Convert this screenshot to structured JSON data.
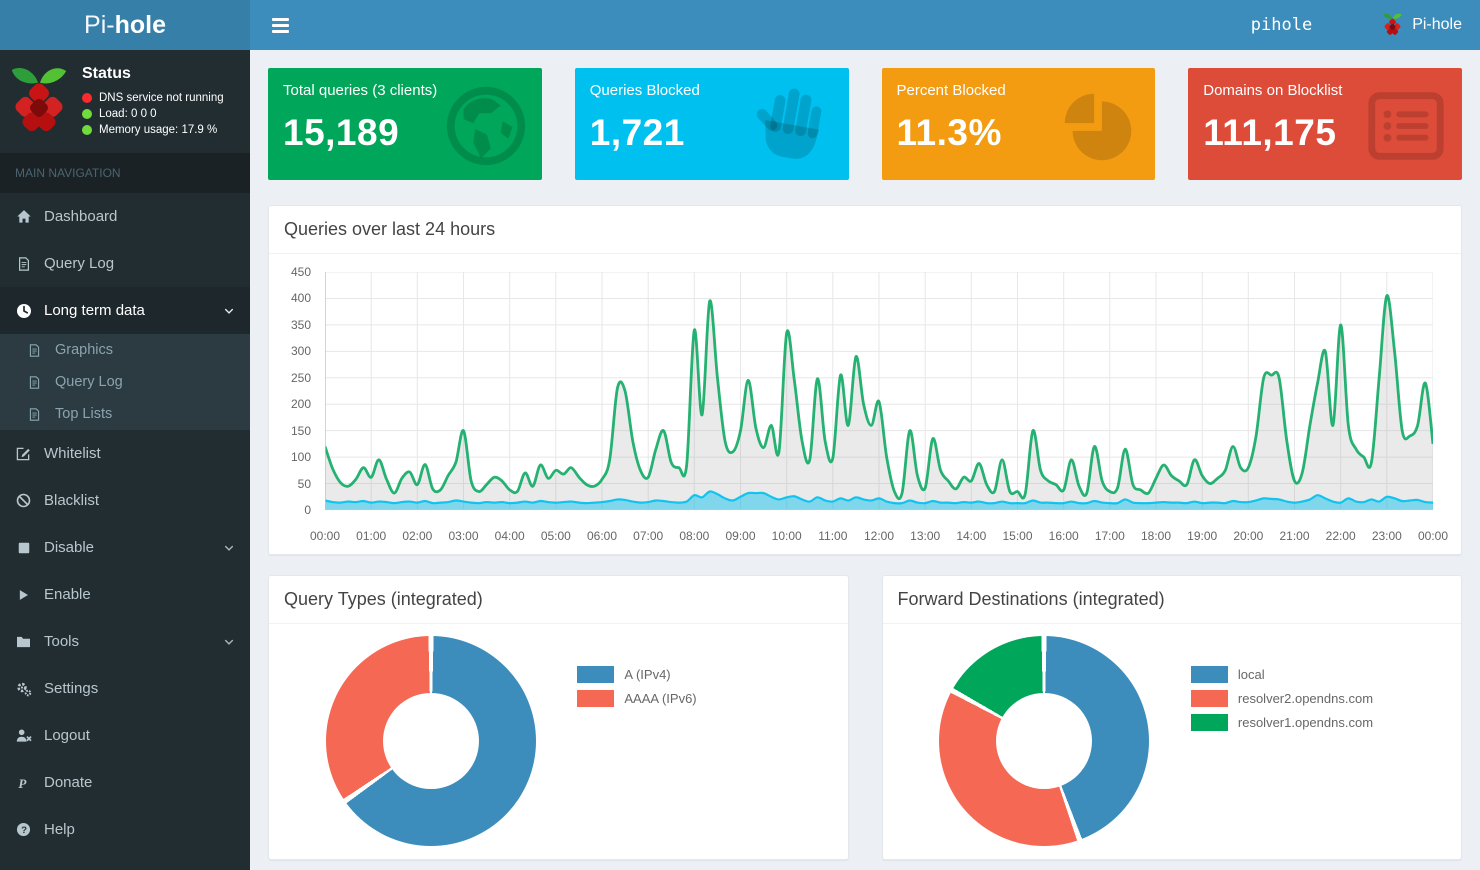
{
  "navbar": {
    "logo_light": "Pi-",
    "logo_bold": "hole",
    "hostname": "pihole",
    "brand": "Pi-hole"
  },
  "status": {
    "title": "Status",
    "items": [
      {
        "text": "DNS service not running",
        "dot_color": "#fb2b2b"
      },
      {
        "text": "Load:  0  0  0",
        "dot_color": "#6fdc3c"
      },
      {
        "text": "Memory usage:  17.9 %",
        "dot_color": "#6fdc3c"
      }
    ]
  },
  "sidebar": {
    "section_label": "MAIN NAVIGATION",
    "items": [
      {
        "label": "Dashboard"
      },
      {
        "label": "Query Log"
      },
      {
        "label": "Long term data"
      },
      {
        "label": "Graphics"
      },
      {
        "label": "Query Log"
      },
      {
        "label": "Top Lists"
      },
      {
        "label": "Whitelist"
      },
      {
        "label": "Blacklist"
      },
      {
        "label": "Disable"
      },
      {
        "label": "Enable"
      },
      {
        "label": "Tools"
      },
      {
        "label": "Settings"
      },
      {
        "label": "Logout"
      },
      {
        "label": "Donate"
      },
      {
        "label": "Help"
      }
    ]
  },
  "cards": [
    {
      "title": "Total queries (3 clients)",
      "value": "15,189",
      "color": "#00a65a"
    },
    {
      "title": "Queries Blocked",
      "value": "1,721",
      "color": "#00c0ef"
    },
    {
      "title": "Percent Blocked",
      "value": "11.3%",
      "color": "#f39c12"
    },
    {
      "title": "Domains on Blocklist",
      "value": "111,175",
      "color": "#dd4b39"
    }
  ],
  "chart_data": {
    "type": "line",
    "title": "Queries over last 24 hours",
    "y_max": 450,
    "y_ticks": [
      450,
      400,
      350,
      300,
      250,
      200,
      150,
      100,
      50,
      0
    ],
    "x_labels": [
      "00:00",
      "01:00",
      "02:00",
      "03:00",
      "04:00",
      "05:00",
      "06:00",
      "07:00",
      "08:00",
      "09:00",
      "10:00",
      "11:00",
      "12:00",
      "13:00",
      "14:00",
      "15:00",
      "16:00",
      "17:00",
      "18:00",
      "19:00",
      "20:00",
      "21:00",
      "22:00",
      "23:00",
      "00:00"
    ],
    "series": [
      {
        "name": "queries",
        "line_color": "rgba(0,166,90,0.85)",
        "fill_color": "rgba(160,160,160,0.22)",
        "values": [
          120,
          78,
          52,
          45,
          58,
          80,
          62,
          95,
          58,
          32,
          60,
          72,
          48,
          86,
          40,
          38,
          65,
          90,
          150,
          55,
          35,
          48,
          62,
          55,
          38,
          35,
          70,
          45,
          85,
          60,
          75,
          68,
          80,
          62,
          48,
          45,
          58,
          95,
          230,
          225,
          130,
          75,
          62,
          115,
          150,
          90,
          80,
          85,
          340,
          180,
          395,
          250,
          130,
          110,
          150,
          245,
          155,
          118,
          160,
          110,
          335,
          245,
          130,
          95,
          248,
          130,
          98,
          255,
          160,
          290,
          200,
          160,
          205,
          100,
          35,
          32,
          150,
          65,
          42,
          135,
          75,
          55,
          40,
          62,
          55,
          88,
          48,
          35,
          95,
          35,
          35,
          30,
          150,
          75,
          55,
          48,
          38,
          95,
          45,
          32,
          120,
          55,
          35,
          42,
          115,
          48,
          38,
          32,
          60,
          85,
          65,
          55,
          48,
          95,
          65,
          50,
          60,
          75,
          120,
          80,
          80,
          140,
          250,
          255,
          250,
          130,
          55,
          70,
          160,
          240,
          300,
          160,
          350,
          160,
          115,
          100,
          90,
          250,
          405,
          300,
          150,
          140,
          160,
          240,
          125
        ]
      },
      {
        "name": "blocked",
        "line_color": "rgba(0,192,239,0.9)",
        "fill_color": "rgba(0,192,239,0.45)",
        "values": [
          18,
          15,
          14,
          16,
          15,
          17,
          14,
          16,
          15,
          13,
          15,
          16,
          14,
          17,
          13,
          14,
          15,
          18,
          16,
          14,
          13,
          15,
          14,
          15,
          13,
          14,
          16,
          14,
          17,
          15,
          14,
          15,
          16,
          14,
          13,
          14,
          15,
          17,
          20,
          19,
          16,
          14,
          15,
          18,
          17,
          15,
          14,
          16,
          28,
          24,
          35,
          30,
          22,
          18,
          25,
          32,
          32,
          32,
          25,
          20,
          24,
          26,
          20,
          16,
          24,
          18,
          16,
          22,
          18,
          24,
          20,
          18,
          22,
          16,
          13,
          13,
          18,
          14,
          13,
          17,
          14,
          14,
          13,
          15,
          14,
          16,
          13,
          13,
          16,
          13,
          13,
          13,
          18,
          14,
          14,
          13,
          13,
          16,
          13,
          13,
          17,
          14,
          13,
          13,
          20,
          14,
          13,
          13,
          14,
          15,
          14,
          14,
          13,
          16,
          13,
          14,
          14,
          13,
          17,
          15,
          15,
          18,
          22,
          21,
          20,
          16,
          14,
          16,
          20,
          28,
          22,
          16,
          14,
          22,
          16,
          15,
          20,
          16,
          25,
          22,
          17,
          18,
          19,
          15,
          14
        ]
      }
    ],
    "grid": true
  },
  "query_types": {
    "title": "Query Types (integrated)",
    "slices": [
      {
        "label": "A (IPv4)",
        "color": "#3c8dbc",
        "percent": 65.3
      },
      {
        "label": "AAAA (IPv6)",
        "color": "#f56954",
        "percent": 34.7
      }
    ]
  },
  "forward_destinations": {
    "title": "Forward Destinations (integrated)",
    "slices": [
      {
        "label": "local",
        "color": "#3c8dbc",
        "percent": 44.5
      },
      {
        "label": "resolver2.opendns.com",
        "color": "#f56954",
        "percent": 38.5
      },
      {
        "label": "resolver1.opendns.com",
        "color": "#00a65a",
        "percent": 17.0
      }
    ]
  }
}
